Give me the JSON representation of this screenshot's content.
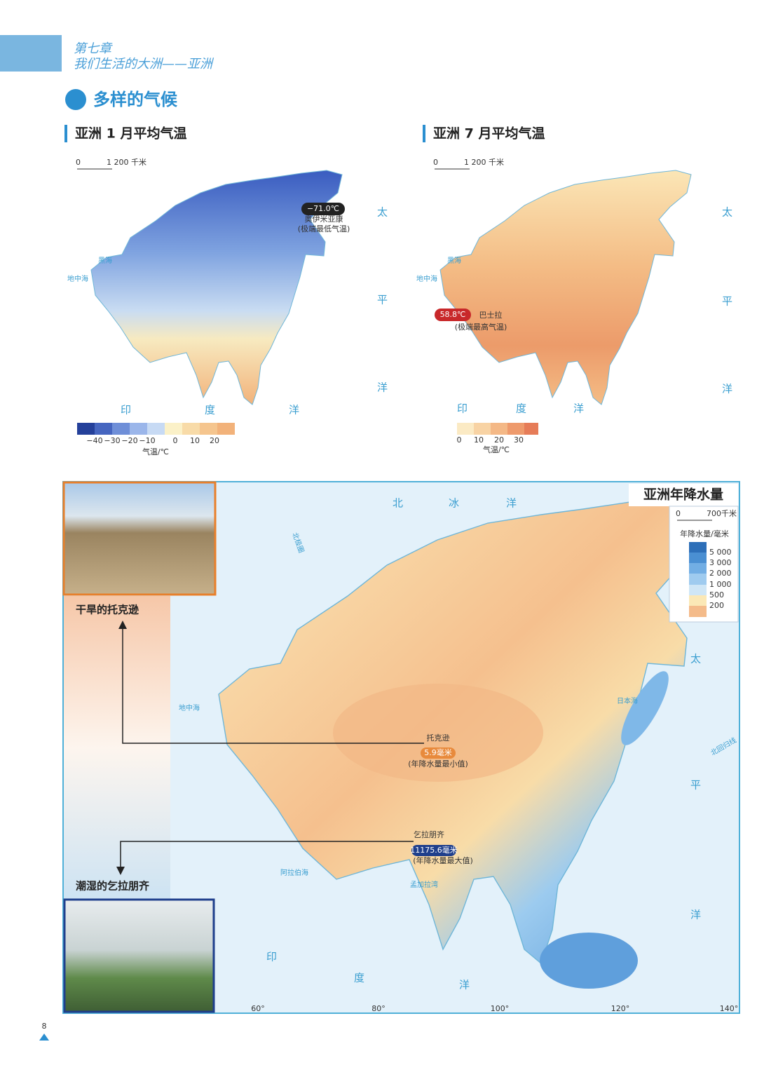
{
  "header": {
    "chapter": "第七章",
    "subtitle": "我们生活的大洲——亚洲"
  },
  "section_title": "多样的气候",
  "january_map": {
    "title": "亚洲 1 月平均气温",
    "scale": [
      "0",
      "1 200 千米"
    ],
    "ocean_labels": [
      "太",
      "平",
      "洋",
      "印",
      "度",
      "洋"
    ],
    "sea_labels": [
      "地中海",
      "黑海"
    ],
    "record": {
      "value": "−71.0℃",
      "place": "奥伊米亚康",
      "note": "(极端最低气温)"
    },
    "legend": {
      "ticks": [
        "−40",
        "−30",
        "−20",
        "−10",
        "0",
        "10",
        "20"
      ],
      "caption": "气温/℃"
    }
  },
  "july_map": {
    "title": "亚洲 7 月平均气温",
    "scale": [
      "0",
      "1 200 千米"
    ],
    "ocean_labels": [
      "太",
      "平",
      "洋",
      "印",
      "度",
      "洋"
    ],
    "sea_labels": [
      "地中海",
      "黑海"
    ],
    "record": {
      "value": "58.8℃",
      "place": "巴士拉",
      "note": "(极端最高气温)"
    },
    "legend": {
      "ticks": [
        "0",
        "10",
        "20",
        "30"
      ],
      "caption": "气温/℃"
    }
  },
  "precipitation_map": {
    "title": "亚洲年降水量",
    "scale": [
      "0",
      "700千米"
    ],
    "legend": {
      "caption": "年降水量/毫米",
      "ticks": [
        "5 000",
        "3 000",
        "2 000",
        "1 000",
        "500",
        "200"
      ]
    },
    "ocean_labels": [
      "北",
      "冰",
      "洋",
      "太",
      "平",
      "洋",
      "印",
      "度",
      "洋"
    ],
    "sea_labels": [
      "阿拉伯海",
      "孟加拉湾",
      "地中海",
      "日本海"
    ],
    "line_labels": [
      "北极圈",
      "北回归线"
    ],
    "min_record": {
      "place": "托克逊",
      "value": "5.9毫米",
      "note": "(年降水量最小值)"
    },
    "max_record": {
      "place": "乞拉朋齐",
      "value": "11175.6毫米",
      "note": "(年降水量最大值)"
    },
    "longitudes": [
      "60°",
      "80°",
      "100°",
      "120°",
      "140°"
    ]
  },
  "photos": [
    {
      "caption": "干旱的托克逊"
    },
    {
      "caption": "潮湿的乞拉朋齐"
    }
  ],
  "page_number": "8"
}
